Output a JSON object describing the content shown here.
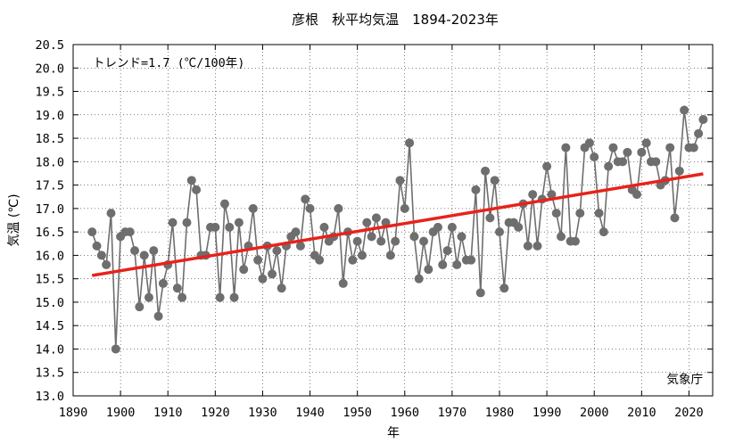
{
  "chart_data": {
    "type": "line",
    "title": "彦根　秋平均気温　1894-2023年",
    "xlabel": "年",
    "ylabel": "気温 (℃)",
    "xlim": [
      1890,
      2025
    ],
    "ylim": [
      13.0,
      20.5
    ],
    "x_ticks": [
      1890,
      1900,
      1910,
      1920,
      1930,
      1940,
      1950,
      1960,
      1970,
      1980,
      1990,
      2000,
      2010,
      2020
    ],
    "y_ticks": [
      "13.0",
      "13.5",
      "14.0",
      "14.5",
      "15.0",
      "15.5",
      "16.0",
      "16.5",
      "17.0",
      "17.5",
      "18.0",
      "18.5",
      "19.0",
      "19.5",
      "20.0",
      "20.5"
    ],
    "grid": true,
    "trend_label": "トレンド=1.7 (℃/100年)",
    "credit": "気象庁",
    "series": [
      {
        "color": "#6e6e6e",
        "x": [
          1894,
          1895,
          1896,
          1897,
          1898,
          1899,
          1900,
          1901,
          1902,
          1903,
          1904,
          1905,
          1906,
          1907,
          1908,
          1909,
          1910,
          1911,
          1912,
          1913,
          1914,
          1915,
          1916,
          1917,
          1918,
          1919,
          1920,
          1921,
          1922,
          1923,
          1924,
          1925,
          1926,
          1927,
          1928,
          1929,
          1930,
          1931,
          1932,
          1933,
          1934,
          1935,
          1936,
          1937,
          1938,
          1939,
          1940,
          1941,
          1942,
          1943,
          1944,
          1945,
          1946,
          1947,
          1948,
          1949,
          1950,
          1951,
          1952,
          1953,
          1954,
          1955,
          1956,
          1957,
          1958,
          1959,
          1960,
          1961,
          1962,
          1963,
          1964,
          1965,
          1966,
          1967,
          1968,
          1969,
          1970,
          1971,
          1972,
          1973,
          1974,
          1975,
          1976,
          1977,
          1978,
          1979,
          1980,
          1981,
          1982,
          1983,
          1984,
          1985,
          1986,
          1987,
          1988,
          1989,
          1990,
          1991,
          1992,
          1993,
          1994,
          1995,
          1996,
          1997,
          1998,
          1999,
          2000,
          2001,
          2002,
          2003,
          2004,
          2005,
          2006,
          2007,
          2008,
          2009,
          2010,
          2011,
          2012,
          2013,
          2014,
          2015,
          2016,
          2017,
          2018,
          2019,
          2020,
          2021,
          2022,
          2023
        ],
        "values": [
          16.5,
          16.2,
          16.0,
          15.8,
          16.9,
          14.0,
          16.4,
          16.5,
          16.5,
          16.1,
          14.9,
          16.0,
          15.1,
          16.1,
          14.7,
          15.4,
          15.8,
          16.7,
          15.3,
          15.1,
          16.7,
          17.6,
          17.4,
          16.0,
          16.0,
          16.6,
          16.6,
          15.1,
          17.1,
          16.6,
          15.1,
          16.7,
          15.7,
          16.2,
          17.0,
          15.9,
          15.5,
          16.2,
          15.6,
          16.1,
          15.3,
          16.2,
          16.4,
          16.5,
          16.2,
          17.2,
          17.0,
          16.0,
          15.9,
          16.6,
          16.3,
          16.4,
          17.0,
          15.4,
          16.5,
          15.9,
          16.3,
          16.0,
          16.7,
          16.4,
          16.8,
          16.3,
          16.7,
          16.0,
          16.3,
          17.6,
          17.0,
          18.4,
          16.4,
          15.5,
          16.3,
          15.7,
          16.5,
          16.6,
          15.8,
          16.1,
          16.6,
          15.8,
          16.4,
          15.9,
          15.9,
          17.4,
          15.2,
          17.8,
          16.8,
          17.6,
          16.5,
          15.3,
          16.7,
          16.7,
          16.6,
          17.1,
          16.2,
          17.3,
          16.2,
          17.2,
          17.9,
          17.3,
          16.9,
          16.4,
          18.3,
          16.3,
          16.3,
          16.9,
          18.3,
          18.4,
          18.1,
          16.9,
          16.5,
          17.9,
          18.3,
          18.0,
          18.0,
          18.2,
          17.4,
          17.3,
          18.2,
          18.4,
          18.0,
          18.0,
          17.5,
          17.6,
          18.3,
          16.8,
          17.8,
          19.1,
          18.3,
          18.3,
          18.6,
          18.9
        ]
      },
      {
        "color": "#e8221b",
        "x": [
          1894,
          2023
        ],
        "values": [
          15.57,
          17.74
        ]
      }
    ]
  }
}
